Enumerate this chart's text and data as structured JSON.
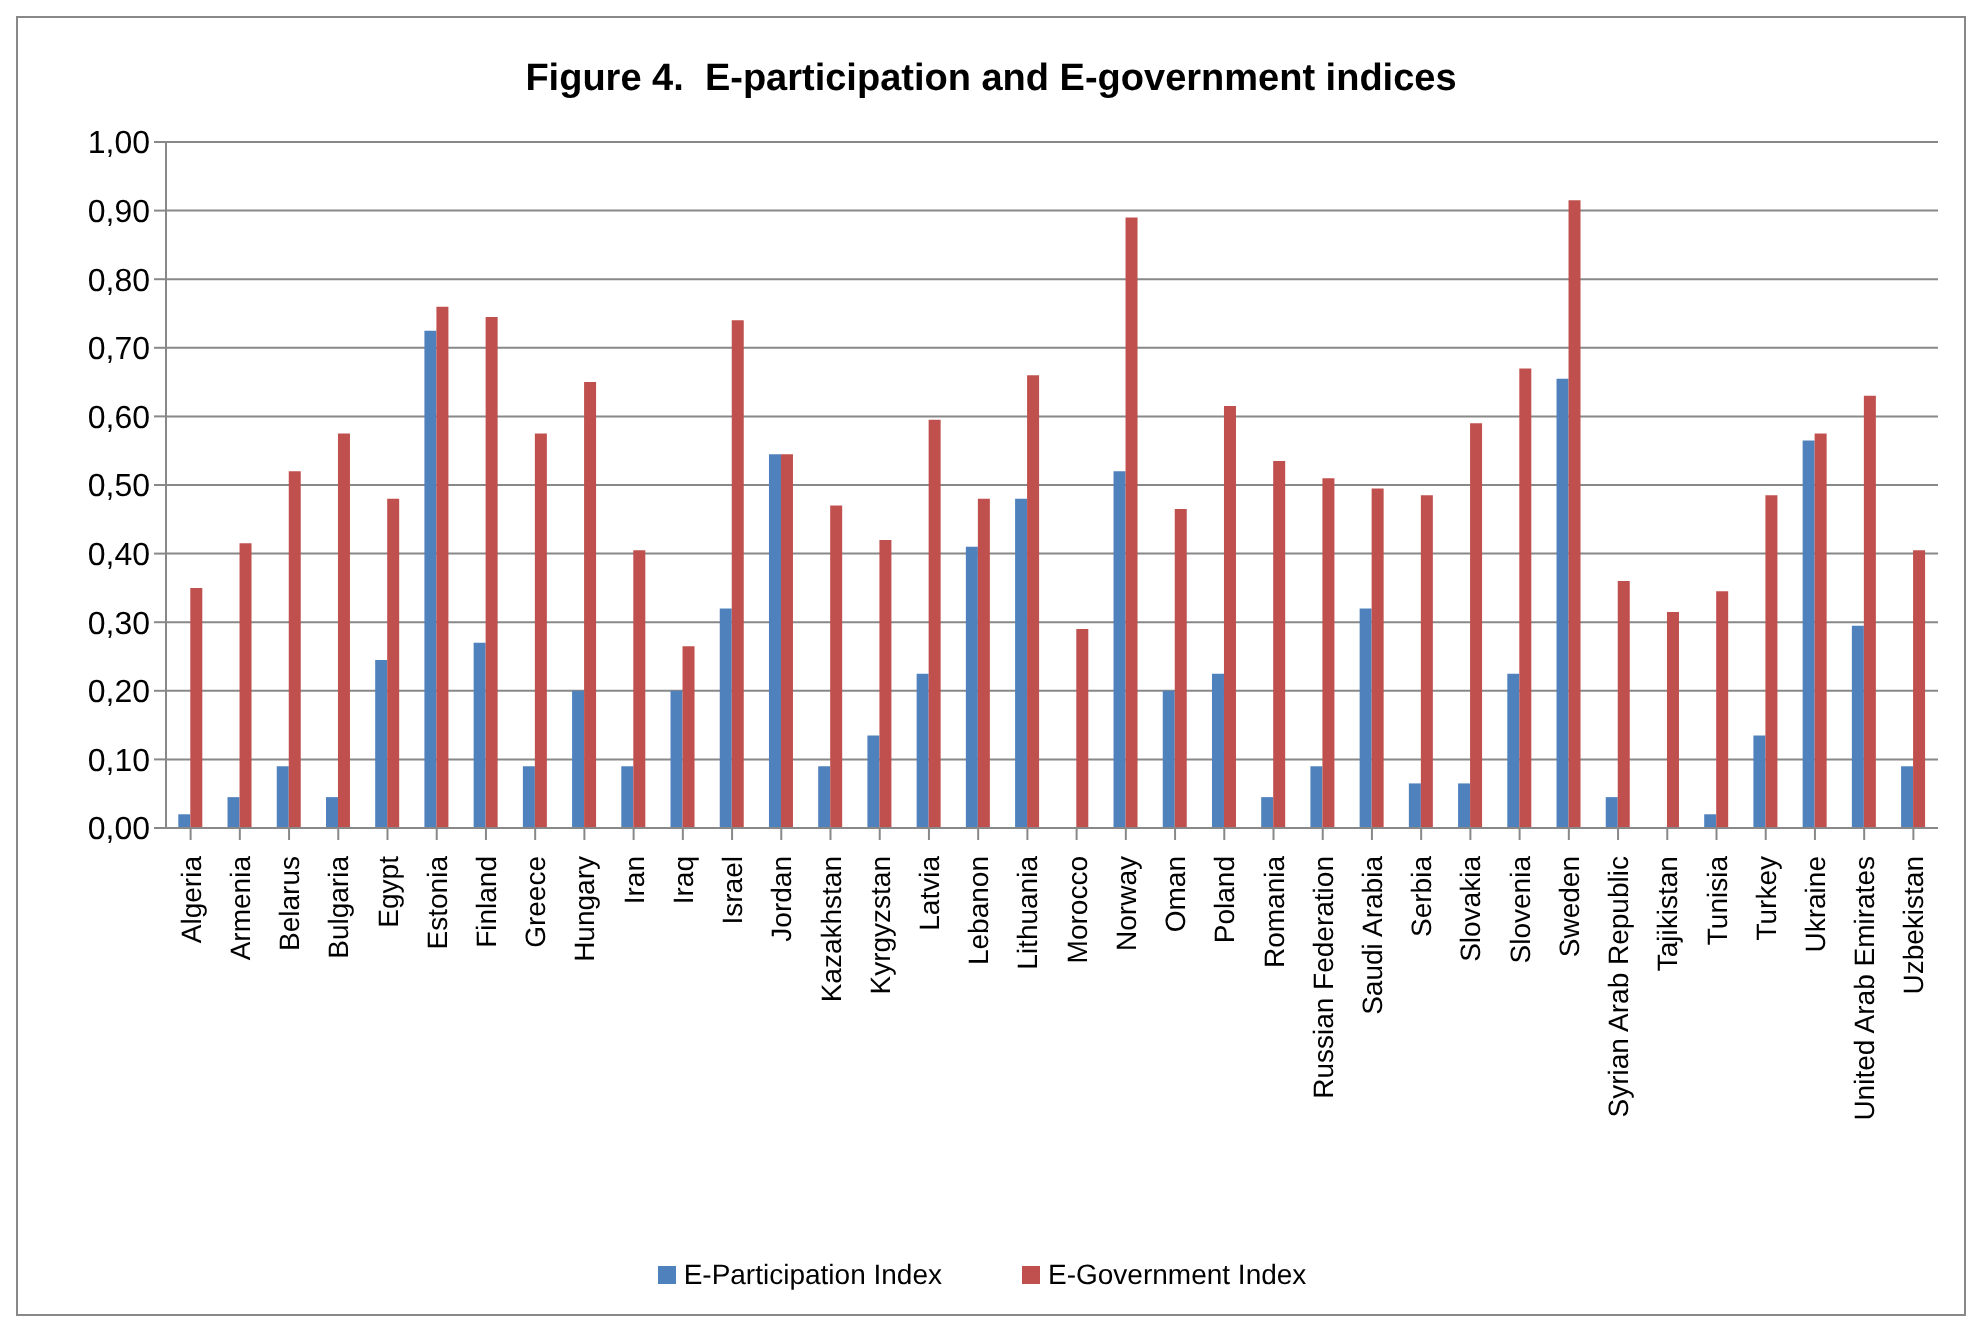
{
  "chart_data": {
    "type": "bar",
    "title": "Figure 4.  E-participation and E-government indices",
    "categories": [
      "Algeria",
      "Armenia",
      "Belarus",
      "Bulgaria",
      "Egypt",
      "Estonia",
      "Finland",
      "Greece",
      "Hungary",
      "Iran",
      "Iraq",
      "Israel",
      "Jordan",
      "Kazakhstan",
      "Kyrgyzstan",
      "Latvia",
      "Lebanon",
      "Lithuania",
      "Morocco",
      "Norway",
      "Oman",
      "Poland",
      "Romania",
      "Russian Federation",
      "Saudi Arabia",
      "Serbia",
      "Slovakia",
      "Slovenia",
      "Sweden",
      "Syrian Arab Republic",
      "Tajikistan",
      "Tunisia",
      "Turkey",
      "Ukraine",
      "United Arab Emirates",
      "Uzbekistan"
    ],
    "series": [
      {
        "name": "E-Participation Index",
        "color": "#4f81bd",
        "values": [
          0.02,
          0.045,
          0.09,
          0.045,
          0.245,
          0.725,
          0.27,
          0.09,
          0.2,
          0.09,
          0.2,
          0.32,
          0.545,
          0.09,
          0.135,
          0.225,
          0.41,
          0.48,
          0,
          0.52,
          0.2,
          0.225,
          0.045,
          0.09,
          0.32,
          0.065,
          0.065,
          0.225,
          0.655,
          0.045,
          0,
          0.02,
          0.135,
          0.565,
          0.295,
          0.09
        ]
      },
      {
        "name": "E-Government Index",
        "color": "#c0504d",
        "values": [
          0.35,
          0.415,
          0.52,
          0.575,
          0.48,
          0.76,
          0.745,
          0.575,
          0.65,
          0.405,
          0.265,
          0.74,
          0.545,
          0.47,
          0.42,
          0.595,
          0.48,
          0.66,
          0.29,
          0.89,
          0.465,
          0.615,
          0.535,
          0.51,
          0.495,
          0.485,
          0.59,
          0.67,
          0.915,
          0.36,
          0.315,
          0.345,
          0.485,
          0.575,
          0.63,
          0.405
        ]
      }
    ],
    "ylim": [
      0,
      1
    ],
    "yticks": [
      {
        "value": 0,
        "label": "0,00"
      },
      {
        "value": 0.1,
        "label": "0,10"
      },
      {
        "value": 0.2,
        "label": "0,20"
      },
      {
        "value": 0.3,
        "label": "0,30"
      },
      {
        "value": 0.4,
        "label": "0,40"
      },
      {
        "value": 0.5,
        "label": "0,50"
      },
      {
        "value": 0.6,
        "label": "0,60"
      },
      {
        "value": 0.7,
        "label": "0,70"
      },
      {
        "value": 0.8,
        "label": "0,80"
      },
      {
        "value": 0.9,
        "label": "0,90"
      },
      {
        "value": 1,
        "label": "1,00"
      }
    ],
    "grid": "y",
    "legend": "bottom"
  }
}
